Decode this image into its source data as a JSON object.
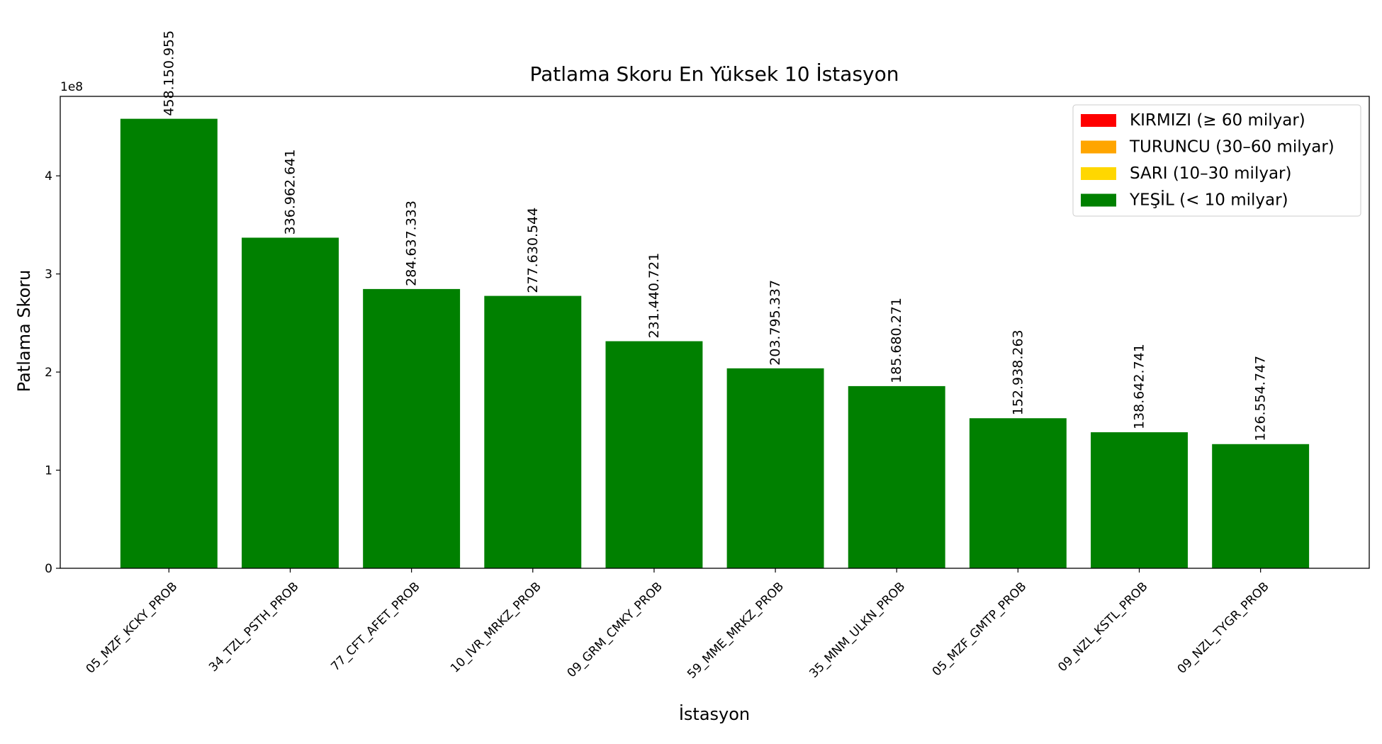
{
  "chart_data": {
    "type": "bar",
    "title": "Patlama Skoru En Yüksek 10 İstasyon",
    "x_label": "İstasyon",
    "y_label": "Patlama Skoru",
    "y_offset_label": "1e8",
    "categories": [
      "05_MZF_KCKY_PROB",
      "34_TZL_PSTH_PROB",
      "77_CFT_AFET_PROB",
      "10_IVR_MRKZ_PROB",
      "09_GRM_CMKY_PROB",
      "59_MME_MRKZ_PROB",
      "35_MNM_ULKN_PROB",
      "05_MZF_GMTP_PROB",
      "09_NZL_KSTL_PROB",
      "09_NZL_TYGR_PROB"
    ],
    "values": [
      458150955,
      336962641,
      284637333,
      277630544,
      231440721,
      203795337,
      185680271,
      152938263,
      138642741,
      126554747
    ],
    "value_labels": [
      "458.150.955",
      "336.962.641",
      "284.637.333",
      "277.630.544",
      "231.440.721",
      "203.795.337",
      "185.680.271",
      "152.938.263",
      "138.642.741",
      "126.554.747"
    ],
    "color": "#008000",
    "ylim": [
      0,
      481000000
    ],
    "yticks": [
      0,
      {
        "value": 100000000,
        "label": "1"
      },
      {
        "value": 200000000,
        "label": "2"
      },
      {
        "value": 300000000,
        "label": "3"
      },
      {
        "value": 400000000,
        "label": "4"
      }
    ],
    "grid": false,
    "legend_position": "upper right",
    "legend": [
      {
        "name": "KIRMIZI (≥ 60 milyar)",
        "color": "#ff0000"
      },
      {
        "name": "TURUNCU (30–60 milyar)",
        "color": "#ffa500"
      },
      {
        "name": "SARI (10–30 milyar)",
        "color": "#ffd700"
      },
      {
        "name": "YEŞİL (< 10 milyar)",
        "color": "#008000"
      }
    ]
  }
}
